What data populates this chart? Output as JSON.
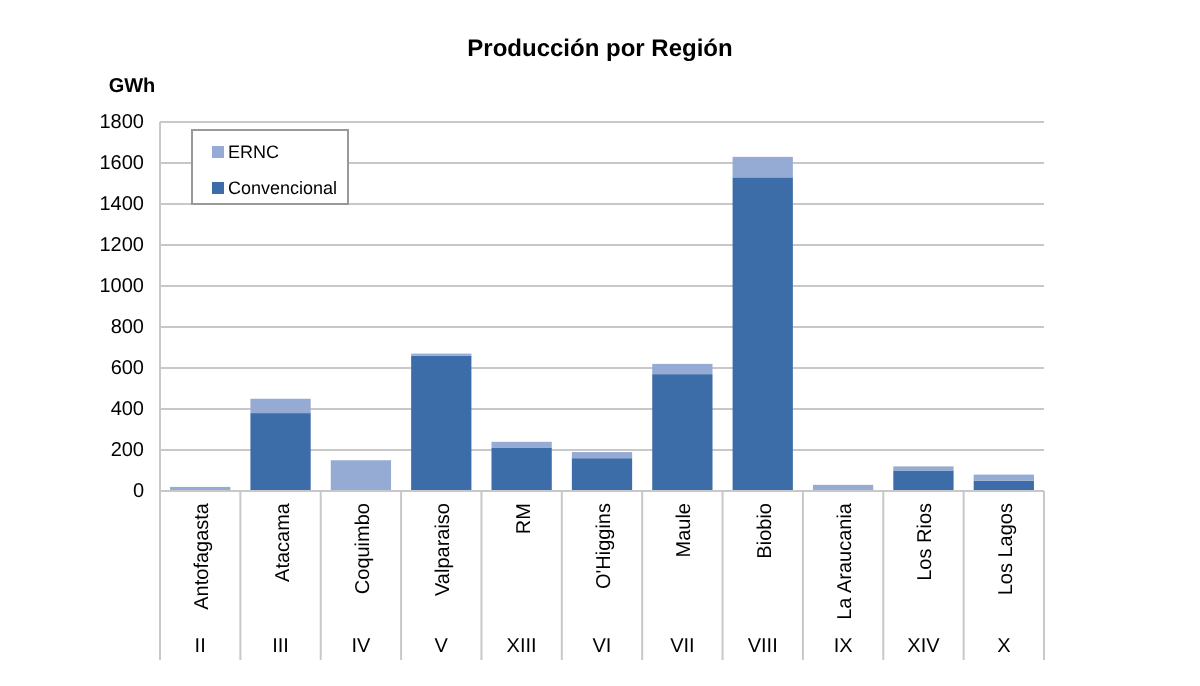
{
  "chart_data": {
    "type": "bar",
    "title": "Producción  por Región",
    "ylabel": "GWh",
    "stacked": true,
    "categories": [
      "Antofagasta",
      "Atacama",
      "Coquimbo",
      "Valparaiso",
      "RM",
      "O'Higgins",
      "Maule",
      "Biobio",
      "La Araucania",
      "Los Rios",
      "Los Lagos"
    ],
    "series": [
      {
        "name": "Convencional",
        "color": "#3d6da8",
        "values": [
          0,
          380,
          0,
          660,
          210,
          160,
          570,
          1530,
          0,
          100,
          50
        ]
      },
      {
        "name": "ERNC",
        "color": "#95abd3",
        "values": [
          20,
          70,
          150,
          10,
          30,
          30,
          50,
          100,
          30,
          20,
          30
        ]
      }
    ],
    "ylim": [
      0,
      1800
    ],
    "yticks": [
      0,
      200,
      400,
      600,
      800,
      1000,
      1200,
      1400,
      1600,
      1800
    ],
    "grid": "y",
    "legend": "top left",
    "annotations": [
      "II",
      "III",
      "IV",
      "V",
      "XIII",
      "VI",
      "VII",
      "VIII",
      "IX",
      "XIV",
      "X"
    ]
  }
}
